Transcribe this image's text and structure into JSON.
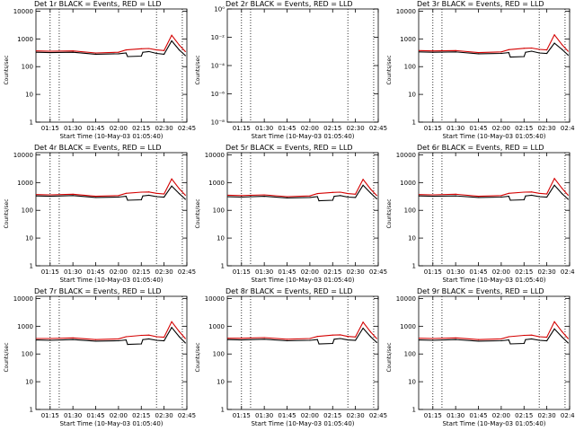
{
  "colors": {
    "events": "#000000",
    "lld": "#d40000"
  },
  "chart_data": [
    {
      "type": "line",
      "title": "Det 1r BLACK = Events, RED = LLD",
      "xlabel": "Start Time (10-May-03 01:05:40)",
      "ylabel": "Counts/sec",
      "xlim": [
        "01:05:40",
        "02:45:00"
      ],
      "xtick_labels": [
        "01:15",
        "01:30",
        "01:45",
        "02:00",
        "02:15",
        "02:30",
        "02:45"
      ],
      "ytick_labels": [
        "1",
        "10",
        "100",
        "1000",
        "10000"
      ],
      "ylim": [
        1,
        12000
      ],
      "yscale": "log",
      "vlines": [
        "01:15",
        "01:21",
        "02:25",
        "02:42"
      ],
      "series": [
        {
          "color": "events",
          "x": [
            "01:06",
            "01:15",
            "01:30",
            "01:45",
            "02:00",
            "02:05",
            "02:06",
            "02:15",
            "02:16",
            "02:20",
            "02:25",
            "02:30",
            "02:35",
            "02:40",
            "02:44"
          ],
          "values": [
            330,
            320,
            330,
            280,
            290,
            310,
            230,
            240,
            330,
            350,
            300,
            280,
            850,
            400,
            250
          ]
        },
        {
          "color": "lld",
          "x": [
            "01:06",
            "01:15",
            "01:30",
            "01:45",
            "02:00",
            "02:05",
            "02:15",
            "02:20",
            "02:25",
            "02:30",
            "02:35",
            "02:40",
            "02:44"
          ],
          "values": [
            370,
            360,
            370,
            310,
            330,
            400,
            440,
            450,
            400,
            380,
            1350,
            600,
            350
          ]
        }
      ]
    },
    {
      "type": "line",
      "title": "Det 2r BLACK = Events, RED = LLD",
      "xlabel": "Start Time (10-May-03 01:05:40)",
      "ylabel": "Counts/sec",
      "xlim": [
        "01:05:40",
        "02:45:00"
      ],
      "xtick_labels": [
        "01:15",
        "01:30",
        "01:45",
        "02:00",
        "02:15",
        "02:30",
        "02:45"
      ],
      "ytick_labels": [
        "10⁻⁸",
        "10⁻⁶",
        "10⁻⁴",
        "10⁻²",
        "10⁰"
      ],
      "ylim": [
        1e-08,
        1
      ],
      "yscale": "log",
      "vlines": [
        "01:15",
        "01:21",
        "02:25",
        "02:42"
      ],
      "series": []
    },
    {
      "type": "line",
      "title": "Det 3r BLACK = Events, RED = LLD",
      "xlabel": "Start Time (10-May-03 01:05:40)",
      "ylabel": "Counts/sec",
      "xlim": [
        "01:05:40",
        "02:45:00"
      ],
      "xtick_labels": [
        "01:15",
        "01:30",
        "01:45",
        "02:00",
        "02:15",
        "02:30",
        "02:45"
      ],
      "ytick_labels": [
        "1",
        "10",
        "100",
        "1000",
        "10000"
      ],
      "ylim": [
        1,
        12000
      ],
      "yscale": "log",
      "vlines": [
        "01:15",
        "01:21",
        "02:25",
        "02:42"
      ],
      "series": [
        {
          "color": "events",
          "x": [
            "01:06",
            "01:15",
            "01:30",
            "01:45",
            "02:00",
            "02:05",
            "02:06",
            "02:15",
            "02:16",
            "02:20",
            "02:25",
            "02:30",
            "02:35",
            "02:40",
            "02:44"
          ],
          "values": [
            340,
            330,
            340,
            290,
            300,
            320,
            220,
            230,
            330,
            360,
            310,
            300,
            700,
            420,
            260
          ]
        },
        {
          "color": "lld",
          "x": [
            "01:06",
            "01:15",
            "01:30",
            "01:45",
            "02:00",
            "02:05",
            "02:15",
            "02:20",
            "02:25",
            "02:30",
            "02:35",
            "02:40",
            "02:44"
          ],
          "values": [
            380,
            370,
            380,
            320,
            340,
            410,
            460,
            470,
            420,
            400,
            1400,
            620,
            360
          ]
        }
      ]
    },
    {
      "type": "line",
      "title": "Det 4r BLACK = Events, RED = LLD",
      "xlabel": "Start Time (10-May-03 01:05:40)",
      "ylabel": "Counts/sec",
      "xlim": [
        "01:05:40",
        "02:45:00"
      ],
      "xtick_labels": [
        "01:15",
        "01:30",
        "01:45",
        "02:00",
        "02:15",
        "02:30",
        "02:45"
      ],
      "ytick_labels": [
        "1",
        "10",
        "100",
        "1000",
        "10000"
      ],
      "ylim": [
        1,
        12000
      ],
      "yscale": "log",
      "vlines": [
        "01:15",
        "01:21",
        "02:25",
        "02:42"
      ],
      "series": [
        {
          "color": "events",
          "x": [
            "01:06",
            "01:15",
            "01:30",
            "01:45",
            "02:00",
            "02:05",
            "02:06",
            "02:15",
            "02:16",
            "02:20",
            "02:25",
            "02:30",
            "02:35",
            "02:40",
            "02:44"
          ],
          "values": [
            330,
            320,
            340,
            290,
            300,
            320,
            230,
            240,
            330,
            350,
            310,
            300,
            750,
            400,
            250
          ]
        },
        {
          "color": "lld",
          "x": [
            "01:06",
            "01:15",
            "01:30",
            "01:45",
            "02:00",
            "02:05",
            "02:15",
            "02:20",
            "02:25",
            "02:30",
            "02:35",
            "02:40",
            "02:44"
          ],
          "values": [
            370,
            360,
            380,
            320,
            340,
            410,
            450,
            460,
            410,
            390,
            1350,
            600,
            350
          ]
        }
      ]
    },
    {
      "type": "line",
      "title": "Det 5r BLACK = Events, RED = LLD",
      "xlabel": "Start Time (10-May-03 01:05:40)",
      "ylabel": "Counts/sec",
      "xlim": [
        "01:05:40",
        "02:45:00"
      ],
      "xtick_labels": [
        "01:15",
        "01:30",
        "01:45",
        "02:00",
        "02:15",
        "02:30",
        "02:45"
      ],
      "ytick_labels": [
        "1",
        "10",
        "100",
        "1000",
        "10000"
      ],
      "ylim": [
        1,
        12000
      ],
      "yscale": "log",
      "vlines": [
        "01:15",
        "01:21",
        "02:25",
        "02:42"
      ],
      "series": [
        {
          "color": "events",
          "x": [
            "01:06",
            "01:15",
            "01:30",
            "01:45",
            "02:00",
            "02:05",
            "02:06",
            "02:15",
            "02:16",
            "02:20",
            "02:25",
            "02:30",
            "02:35",
            "02:40",
            "02:44"
          ],
          "values": [
            310,
            300,
            320,
            280,
            290,
            310,
            220,
            230,
            320,
            340,
            300,
            290,
            800,
            420,
            260
          ]
        },
        {
          "color": "lld",
          "x": [
            "01:06",
            "01:15",
            "01:30",
            "01:45",
            "02:00",
            "02:05",
            "02:15",
            "02:20",
            "02:25",
            "02:30",
            "02:35",
            "02:40",
            "02:44"
          ],
          "values": [
            350,
            340,
            360,
            310,
            330,
            400,
            440,
            450,
            400,
            380,
            1300,
            580,
            340
          ]
        }
      ]
    },
    {
      "type": "line",
      "title": "Det 6r BLACK = Events, RED = LLD",
      "xlabel": "Start Time (10-May-03 01:05:40)",
      "ylabel": "Counts/sec",
      "xlim": [
        "01:05:40",
        "02:45:00"
      ],
      "xtick_labels": [
        "01:15",
        "01:30",
        "01:45",
        "02:00",
        "02:15",
        "02:30",
        "02:45"
      ],
      "ytick_labels": [
        "1",
        "10",
        "100",
        "1000",
        "10000"
      ],
      "ylim": [
        1,
        12000
      ],
      "yscale": "log",
      "vlines": [
        "01:15",
        "01:21",
        "02:25",
        "02:42"
      ],
      "series": [
        {
          "color": "events",
          "x": [
            "01:06",
            "01:15",
            "01:30",
            "01:45",
            "02:00",
            "02:05",
            "02:06",
            "02:15",
            "02:16",
            "02:20",
            "02:25",
            "02:30",
            "02:35",
            "02:40",
            "02:44"
          ],
          "values": [
            330,
            320,
            330,
            290,
            300,
            320,
            230,
            240,
            330,
            350,
            310,
            300,
            800,
            400,
            250
          ]
        },
        {
          "color": "lld",
          "x": [
            "01:06",
            "01:15",
            "01:30",
            "01:45",
            "02:00",
            "02:05",
            "02:15",
            "02:20",
            "02:25",
            "02:30",
            "02:35",
            "02:40",
            "02:44"
          ],
          "values": [
            370,
            360,
            380,
            320,
            340,
            410,
            450,
            460,
            410,
            390,
            1400,
            620,
            350
          ]
        }
      ]
    },
    {
      "type": "line",
      "title": "Det 7r BLACK = Events, RED = LLD",
      "xlabel": "Start Time (10-May-03 01:05:40)",
      "ylabel": "Counts/sec",
      "xlim": [
        "01:05:40",
        "02:45:00"
      ],
      "xtick_labels": [
        "01:15",
        "01:30",
        "01:45",
        "02:00",
        "02:15",
        "02:30",
        "02:45"
      ],
      "ytick_labels": [
        "1",
        "10",
        "100",
        "1000",
        "10000"
      ],
      "ylim": [
        1,
        12000
      ],
      "yscale": "log",
      "vlines": [
        "01:15",
        "01:21",
        "02:25",
        "02:42"
      ],
      "series": [
        {
          "color": "events",
          "x": [
            "01:06",
            "01:15",
            "01:30",
            "01:45",
            "02:00",
            "02:05",
            "02:06",
            "02:15",
            "02:16",
            "02:20",
            "02:25",
            "02:30",
            "02:35",
            "02:40",
            "02:44"
          ],
          "values": [
            320,
            310,
            330,
            290,
            300,
            320,
            220,
            230,
            330,
            350,
            310,
            300,
            900,
            420,
            250
          ]
        },
        {
          "color": "lld",
          "x": [
            "01:06",
            "01:15",
            "01:30",
            "01:45",
            "02:00",
            "02:05",
            "02:15",
            "02:20",
            "02:25",
            "02:30",
            "02:35",
            "02:40",
            "02:44"
          ],
          "values": [
            360,
            360,
            380,
            330,
            350,
            420,
            470,
            480,
            420,
            400,
            1450,
            640,
            360
          ]
        }
      ]
    },
    {
      "type": "line",
      "title": "Det 8r BLACK = Events, RED = LLD",
      "xlabel": "Start Time (10-May-03 01:05:40)",
      "ylabel": "Counts/sec",
      "xlim": [
        "01:05:40",
        "02:45:00"
      ],
      "xtick_labels": [
        "01:15",
        "01:30",
        "01:45",
        "02:00",
        "02:15",
        "02:30",
        "02:45"
      ],
      "ytick_labels": [
        "1",
        "10",
        "100",
        "1000",
        "10000"
      ],
      "ylim": [
        1,
        12000
      ],
      "yscale": "log",
      "vlines": [
        "01:15",
        "01:21",
        "02:25",
        "02:42"
      ],
      "series": [
        {
          "color": "events",
          "x": [
            "01:06",
            "01:15",
            "01:30",
            "01:45",
            "02:00",
            "02:05",
            "02:06",
            "02:15",
            "02:16",
            "02:20",
            "02:25",
            "02:30",
            "02:35",
            "02:40",
            "02:44"
          ],
          "values": [
            330,
            320,
            340,
            300,
            310,
            330,
            230,
            240,
            340,
            360,
            320,
            310,
            850,
            420,
            260
          ]
        },
        {
          "color": "lld",
          "x": [
            "01:06",
            "01:15",
            "01:30",
            "01:45",
            "02:00",
            "02:05",
            "02:15",
            "02:20",
            "02:25",
            "02:30",
            "02:35",
            "02:40",
            "02:44"
          ],
          "values": [
            370,
            370,
            390,
            340,
            360,
            430,
            480,
            490,
            430,
            410,
            1400,
            620,
            360
          ]
        }
      ]
    },
    {
      "type": "line",
      "title": "Det 9r BLACK = Events, RED = LLD",
      "xlabel": "Start Time (10-May-03 01:05:40)",
      "ylabel": "Counts/sec",
      "xlim": [
        "01:05:40",
        "02:45:00"
      ],
      "xtick_labels": [
        "01:15",
        "01:30",
        "01:45",
        "02:00",
        "02:15",
        "02:30",
        "02:45"
      ],
      "ytick_labels": [
        "1",
        "10",
        "100",
        "1000",
        "10000"
      ],
      "ylim": [
        1,
        12000
      ],
      "yscale": "log",
      "vlines": [
        "01:15",
        "01:21",
        "02:25",
        "02:42"
      ],
      "series": [
        {
          "color": "events",
          "x": [
            "01:06",
            "01:15",
            "01:30",
            "01:45",
            "02:00",
            "02:05",
            "02:06",
            "02:15",
            "02:16",
            "02:20",
            "02:25",
            "02:30",
            "02:35",
            "02:40",
            "02:44"
          ],
          "values": [
            320,
            310,
            330,
            290,
            300,
            320,
            230,
            240,
            330,
            350,
            310,
            300,
            800,
            410,
            250
          ]
        },
        {
          "color": "lld",
          "x": [
            "01:06",
            "01:15",
            "01:30",
            "01:45",
            "02:00",
            "02:05",
            "02:15",
            "02:20",
            "02:25",
            "02:30",
            "02:35",
            "02:40",
            "02:44"
          ],
          "values": [
            370,
            360,
            380,
            330,
            350,
            420,
            470,
            480,
            420,
            400,
            1450,
            640,
            360
          ]
        }
      ]
    }
  ]
}
